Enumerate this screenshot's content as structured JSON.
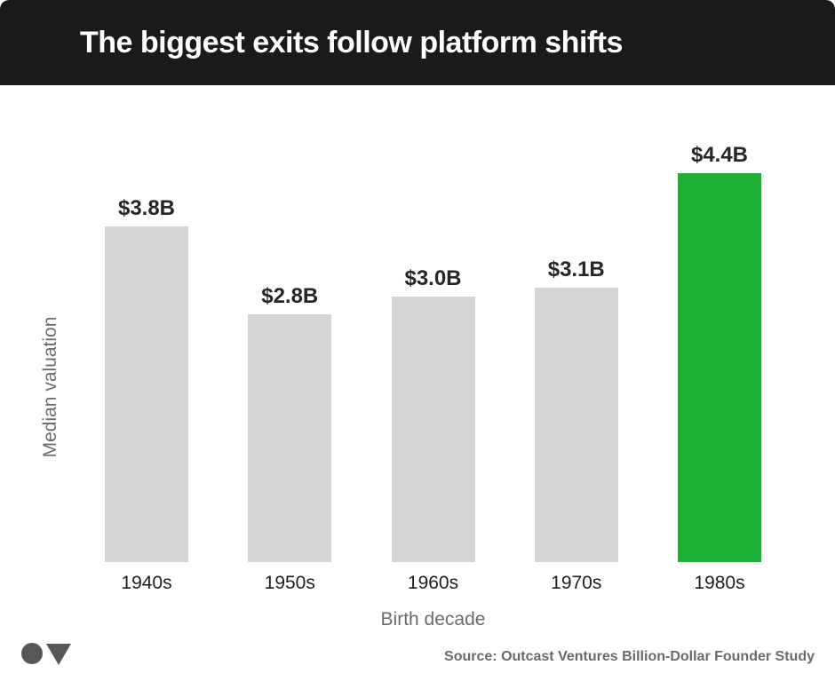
{
  "header": {
    "title": "The biggest exits follow platform shifts",
    "bg_color": "#1a1a1a",
    "text_color": "#ffffff"
  },
  "chart_data": {
    "type": "bar",
    "title": "The biggest exits follow platform shifts",
    "categories": [
      "1940s",
      "1950s",
      "1960s",
      "1970s",
      "1980s"
    ],
    "values": [
      3.8,
      2.8,
      3.0,
      3.1,
      4.4
    ],
    "value_labels": [
      "$3.8B",
      "$2.8B",
      "$3.0B",
      "$3.1B",
      "$4.4B"
    ],
    "xlabel": "Birth decade",
    "ylabel": "Median valuation",
    "ylim": [
      0,
      4.4
    ],
    "grid": false,
    "legend": false,
    "highlight_index": 4,
    "colors": {
      "bar_default": "#d5d5d5",
      "bar_highlight": "#1cb135"
    }
  },
  "footer": {
    "source": "Source: Outcast Ventures Billion-Dollar Founder Study",
    "logo_icons": [
      "circle-icon",
      "triangle-down-icon"
    ],
    "logo_color": "#575757"
  }
}
